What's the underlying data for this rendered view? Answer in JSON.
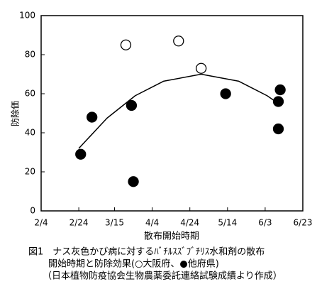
{
  "chart_data": {
    "type": "scatter",
    "x_label": "散布開始時期",
    "y_label": "防除価",
    "caption": [
      "図1　ナス灰色かび病に対するﾊﾞﾁﾙｽｽﾞﾌﾞﾁﾘｽ水和剤の散布",
      "開始時期と防除効果(○大阪府、●他府県)",
      "（日本植物防疫協会生物農薬委託連絡試験成績より作成）"
    ],
    "xlim": [
      35,
      174
    ],
    "xticks": [
      {
        "value": 35,
        "label": "2/4"
      },
      {
        "value": 55,
        "label": "2/24"
      },
      {
        "value": 74,
        "label": "3/15"
      },
      {
        "value": 94,
        "label": "4/4"
      },
      {
        "value": 114,
        "label": "4/24"
      },
      {
        "value": 134,
        "label": "5/14"
      },
      {
        "value": 154,
        "label": "6/3"
      },
      {
        "value": 174,
        "label": "6/23"
      }
    ],
    "ylim": [
      0,
      100
    ],
    "yticks": [
      0,
      20,
      40,
      60,
      80,
      100
    ],
    "series": [
      {
        "marker": "open",
        "color": "#000000",
        "x": [
          80,
          108,
          120
        ],
        "values": [
          85,
          87,
          73
        ]
      },
      {
        "marker": "filled",
        "color": "#000000",
        "x": [
          56,
          62,
          83,
          84,
          133,
          161,
          162,
          161
        ],
        "values": [
          29,
          48,
          54,
          15,
          60,
          56,
          62,
          42
        ]
      }
    ],
    "fit": {
      "color": "#000000",
      "x": [
        55,
        70,
        85,
        100,
        120,
        140,
        155,
        161
      ],
      "values": [
        32,
        47.5,
        59,
        66.4,
        70,
        66.4,
        59,
        55
      ]
    }
  }
}
